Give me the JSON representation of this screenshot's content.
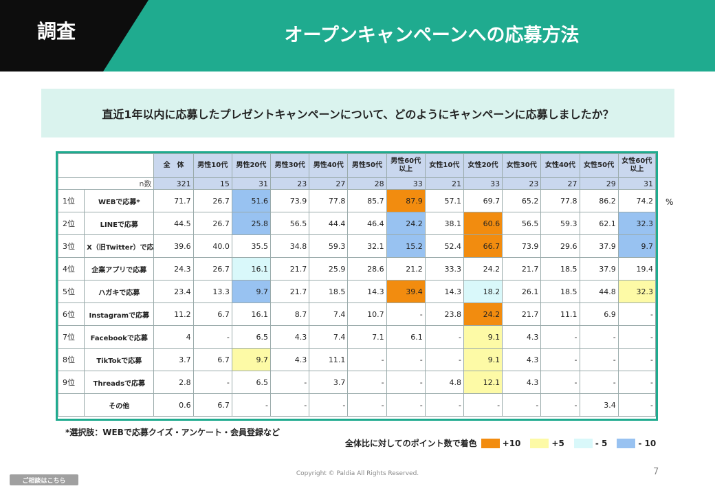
{
  "header": {
    "tag": "調査",
    "title": "オープンキャンペーンへの応募方法"
  },
  "question": "直近1年以内に応募したプレゼントキャンペーンについて、どのようにキャンペーンに応募しましたか？",
  "table": {
    "columns": [
      "全　体",
      "男性10代",
      "男性20代",
      "男性30代",
      "男性40代",
      "男性50代",
      "男性60代以上",
      "女性10代",
      "女性20代",
      "女性30代",
      "女性40代",
      "女性50代",
      "女性60代以上"
    ],
    "n_label": "n数",
    "n": [
      "321",
      "15",
      "31",
      "23",
      "27",
      "28",
      "33",
      "21",
      "33",
      "23",
      "27",
      "29",
      "31"
    ],
    "rows": [
      {
        "rank": "1位",
        "label": "WEBで応募*",
        "values": [
          "71.7",
          "26.7",
          "51.6",
          "73.9",
          "77.8",
          "85.7",
          "87.9",
          "57.1",
          "69.7",
          "65.2",
          "77.8",
          "86.2",
          "74.2"
        ],
        "colors": [
          "",
          "",
          "b",
          "",
          "",
          "",
          "o",
          "",
          "",
          "",
          "",
          "",
          ""
        ]
      },
      {
        "rank": "2位",
        "label": "LINEで応募",
        "values": [
          "44.5",
          "26.7",
          "25.8",
          "56.5",
          "44.4",
          "46.4",
          "24.2",
          "38.1",
          "60.6",
          "56.5",
          "59.3",
          "62.1",
          "32.3"
        ],
        "colors": [
          "",
          "",
          "b",
          "",
          "",
          "",
          "b",
          "",
          "o",
          "",
          "",
          "",
          "b"
        ]
      },
      {
        "rank": "3位",
        "label": "X（旧Twitter）で応募",
        "values": [
          "39.6",
          "40.0",
          "35.5",
          "34.8",
          "59.3",
          "32.1",
          "15.2",
          "52.4",
          "66.7",
          "73.9",
          "29.6",
          "37.9",
          "9.7"
        ],
        "colors": [
          "",
          "",
          "",
          "",
          "",
          "",
          "b",
          "",
          "o",
          "",
          "",
          "",
          "b"
        ]
      },
      {
        "rank": "4位",
        "label": "企業アプリで応募",
        "values": [
          "24.3",
          "26.7",
          "16.1",
          "21.7",
          "25.9",
          "28.6",
          "21.2",
          "33.3",
          "24.2",
          "21.7",
          "18.5",
          "37.9",
          "19.4"
        ],
        "colors": [
          "",
          "",
          "c",
          "",
          "",
          "",
          "",
          "",
          "",
          "",
          "",
          "",
          ""
        ]
      },
      {
        "rank": "5位",
        "label": "ハガキで応募",
        "values": [
          "23.4",
          "13.3",
          "9.7",
          "21.7",
          "18.5",
          "14.3",
          "39.4",
          "14.3",
          "18.2",
          "26.1",
          "18.5",
          "44.8",
          "32.3"
        ],
        "colors": [
          "",
          "",
          "b",
          "",
          "",
          "",
          "o",
          "",
          "c",
          "",
          "",
          "",
          "y"
        ]
      },
      {
        "rank": "6位",
        "label": "Instagramで応募",
        "values": [
          "11.2",
          "6.7",
          "16.1",
          "8.7",
          "7.4",
          "10.7",
          "-",
          "23.8",
          "24.2",
          "21.7",
          "11.1",
          "6.9",
          "-"
        ],
        "colors": [
          "",
          "",
          "",
          "",
          "",
          "",
          "",
          "",
          "o",
          "",
          "",
          "",
          ""
        ]
      },
      {
        "rank": "7位",
        "label": "Facebookで応募",
        "values": [
          "4",
          "-",
          "6.5",
          "4.3",
          "7.4",
          "7.1",
          "6.1",
          "-",
          "9.1",
          "4.3",
          "-",
          "-",
          "-"
        ],
        "colors": [
          "",
          "",
          "",
          "",
          "",
          "",
          "",
          "",
          "y",
          "",
          "",
          "",
          ""
        ]
      },
      {
        "rank": "8位",
        "label": "TikTokで応募",
        "values": [
          "3.7",
          "6.7",
          "9.7",
          "4.3",
          "11.1",
          "-",
          "-",
          "-",
          "9.1",
          "4.3",
          "-",
          "-",
          "-"
        ],
        "colors": [
          "",
          "",
          "y",
          "",
          "",
          "",
          "",
          "",
          "y",
          "",
          "",
          "",
          ""
        ]
      },
      {
        "rank": "9位",
        "label": "Threadsで応募",
        "values": [
          "2.8",
          "-",
          "6.5",
          "-",
          "3.7",
          "-",
          "-",
          "4.8",
          "12.1",
          "4.3",
          "-",
          "-",
          "-"
        ],
        "colors": [
          "",
          "",
          "",
          "",
          "",
          "",
          "",
          "",
          "y",
          "",
          "",
          "",
          ""
        ]
      },
      {
        "rank": "",
        "label": "その他",
        "values": [
          "0.6",
          "6.7",
          "-",
          "-",
          "-",
          "-",
          "-",
          "-",
          "-",
          "-",
          "-",
          "3.4",
          "-"
        ],
        "colors": [
          "",
          "",
          "",
          "",
          "",
          "",
          "",
          "",
          "",
          "",
          "",
          "",
          ""
        ]
      }
    ],
    "unit": "%"
  },
  "color_map": {
    "o": "#f28c0f",
    "y": "#fdfaa6",
    "c": "#d9f8fa",
    "b": "#98c2f1"
  },
  "note": "*選択肢：WEBで応募クイズ・アンケート・会員登録など",
  "legend": {
    "label": "全体比に対してのポイント数で着色",
    "items": [
      {
        "label": "+10",
        "color": "#f28c0f"
      },
      {
        "label": "+5",
        "color": "#fdfaa6"
      },
      {
        "label": "- 5",
        "color": "#d9f8fa"
      },
      {
        "label": "- 10",
        "color": "#98c2f1"
      }
    ]
  },
  "footer": {
    "copyright": "Copyright © Paldia All Rights Reserved.",
    "page": "7",
    "consult": "ご相談はこちら"
  }
}
